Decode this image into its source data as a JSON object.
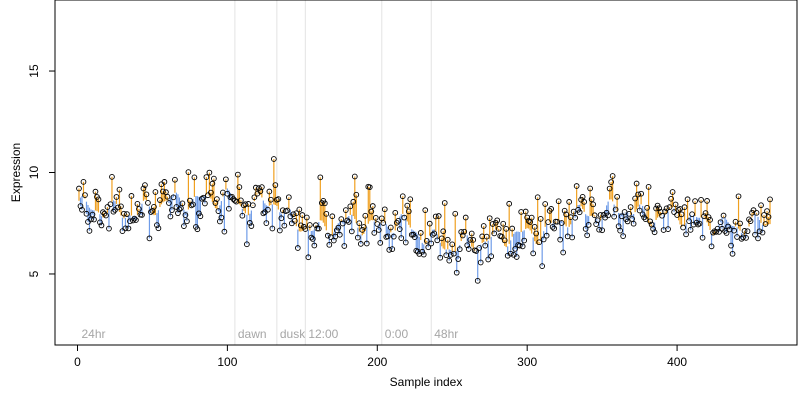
{
  "chart_data": {
    "type": "scatter",
    "title": "",
    "xlabel": "Sample index",
    "ylabel": "Expression",
    "xlim": [
      -15,
      480
    ],
    "ylim": [
      1.5,
      18.5
    ],
    "x_ticks": [
      0,
      100,
      200,
      300,
      400
    ],
    "y_ticks": [
      5,
      10,
      15
    ],
    "grid": false,
    "vertical_lines": [
      {
        "x": 105,
        "label": "dawn"
      },
      {
        "x": 133,
        "label": "dusk"
      },
      {
        "x": 152,
        "label": "12:00"
      },
      {
        "x": 203,
        "label": "0:00"
      },
      {
        "x": 236,
        "label": "48hr"
      }
    ],
    "corner_label": "24hr",
    "trend_color": "#6f9ce8",
    "above_color": "#f0a020",
    "point_edge_color": "#000000",
    "trend_knots": [
      [
        0,
        8.4
      ],
      [
        20,
        8.1
      ],
      [
        40,
        8.0
      ],
      [
        60,
        8.6
      ],
      [
        80,
        8.6
      ],
      [
        100,
        8.8
      ],
      [
        110,
        8.3
      ],
      [
        133,
        8.6
      ],
      [
        140,
        7.7
      ],
      [
        160,
        7.1
      ],
      [
        180,
        7.6
      ],
      [
        200,
        7.3
      ],
      [
        215,
        7.6
      ],
      [
        230,
        6.9
      ],
      [
        250,
        6.3
      ],
      [
        270,
        6.6
      ],
      [
        290,
        6.9
      ],
      [
        310,
        7.0
      ],
      [
        330,
        7.9
      ],
      [
        350,
        8.0
      ],
      [
        362,
        8.3
      ],
      [
        380,
        7.8
      ],
      [
        400,
        7.9
      ],
      [
        420,
        7.5
      ],
      [
        440,
        7.3
      ],
      [
        462,
        7.6
      ]
    ],
    "n_points": 462,
    "noise_sd": 0.65,
    "seed": 20240611
  }
}
